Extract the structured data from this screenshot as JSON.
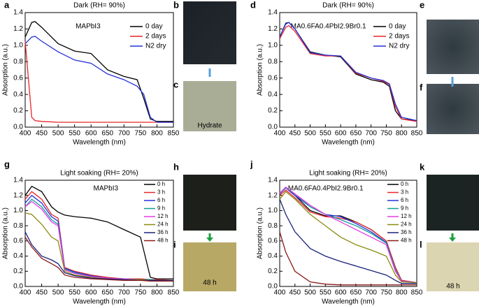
{
  "chart_data": [
    {
      "type": "line",
      "panel": "a",
      "title": "Dark (RH= 90%)",
      "annotation": "MAPbI3",
      "xlabel": "Wavelength (nm)",
      "ylabel": "Absorption (a.u.)",
      "x": [
        400,
        420,
        430,
        450,
        500,
        550,
        600,
        650,
        700,
        740,
        760,
        780,
        800,
        850
      ],
      "series": [
        {
          "name": "0 day",
          "color": "#000000",
          "values": [
            1.1,
            1.28,
            1.29,
            1.22,
            1.02,
            0.93,
            0.9,
            0.7,
            0.62,
            0.58,
            0.35,
            0.1,
            0.07,
            0.07
          ]
        },
        {
          "name": "2 days",
          "color": "#e8262a",
          "values": [
            1.05,
            0.12,
            0.08,
            0.07,
            0.06,
            0.06,
            0.06,
            0.06,
            0.06,
            0.06,
            0.06,
            0.06,
            0.06,
            0.06
          ]
        },
        {
          "name": "N2 dry",
          "color": "#2532d8",
          "values": [
            1.02,
            1.1,
            1.11,
            1.05,
            0.92,
            0.82,
            0.78,
            0.65,
            0.58,
            0.5,
            0.4,
            0.12,
            0.06,
            0.06
          ]
        }
      ],
      "xlim": [
        400,
        850
      ],
      "xticks": [
        400,
        450,
        500,
        550,
        600,
        650,
        700,
        750,
        800,
        850
      ],
      "ylim": [
        0,
        1.4
      ],
      "yticks": [
        {
          "value": 0,
          "label": "0.0"
        },
        0.2,
        0.4,
        0.6,
        0.8,
        {
          "value": 1,
          "label": "1.0"
        },
        1.2,
        1.4
      ],
      "legend_loc": "upper right",
      "grid": false
    },
    {
      "type": "line",
      "panel": "d",
      "title": "Dark (RH= 90%)",
      "annotation": "MA0.6FA0.4PbI2.9Br0.1",
      "xlabel": "Wavelength (nm)",
      "ylabel": "Absorption (a.u.)",
      "x": [
        400,
        420,
        430,
        450,
        500,
        550,
        600,
        650,
        700,
        740,
        760,
        780,
        800,
        850
      ],
      "series": [
        {
          "name": "0 day",
          "color": "#000000",
          "values": [
            1.1,
            1.27,
            1.28,
            1.2,
            0.92,
            0.88,
            0.86,
            0.65,
            0.58,
            0.55,
            0.5,
            0.2,
            0.1,
            0.08
          ]
        },
        {
          "name": "2 days",
          "color": "#e8262a",
          "values": [
            1.08,
            1.22,
            1.24,
            1.17,
            0.9,
            0.87,
            0.87,
            0.66,
            0.6,
            0.56,
            0.52,
            0.25,
            0.1,
            0.07
          ]
        },
        {
          "name": "N2 dry",
          "color": "#2532d8",
          "values": [
            1.1,
            1.26,
            1.28,
            1.2,
            0.91,
            0.88,
            0.87,
            0.67,
            0.6,
            0.57,
            0.53,
            0.28,
            0.12,
            0.08
          ]
        }
      ],
      "xlim": [
        400,
        850
      ],
      "xticks": [
        400,
        450,
        500,
        550,
        600,
        650,
        700,
        750,
        800,
        850
      ],
      "ylim": [
        0,
        1.4
      ],
      "yticks": [
        {
          "value": 0,
          "label": "0.0"
        },
        0.2,
        0.4,
        0.6,
        0.8,
        {
          "value": 1,
          "label": "1.0"
        },
        1.2,
        1.4
      ],
      "legend_loc": "upper right",
      "grid": false
    },
    {
      "type": "line",
      "panel": "g",
      "title": "Light soaking (RH= 20%)",
      "annotation": "MAPbI3",
      "xlabel": "Wavelength (nm)",
      "ylabel": "Absorption (a.u.)",
      "x": [
        400,
        420,
        450,
        480,
        500,
        520,
        550,
        600,
        650,
        700,
        750,
        780,
        800,
        850
      ],
      "series": [
        {
          "name": "0 h",
          "color": "#000000",
          "values": [
            1.2,
            1.32,
            1.25,
            1.05,
            0.98,
            0.94,
            0.92,
            0.9,
            0.85,
            0.75,
            0.65,
            0.12,
            0.1,
            0.1
          ]
        },
        {
          "name": "3 h",
          "color": "#e8262a",
          "values": [
            1.15,
            1.25,
            1.15,
            0.95,
            0.9,
            0.25,
            0.2,
            0.15,
            0.12,
            0.1,
            0.1,
            0.09,
            0.09,
            0.08
          ]
        },
        {
          "name": "6 h",
          "color": "#2532d8",
          "values": [
            1.1,
            1.2,
            1.1,
            0.92,
            0.86,
            0.24,
            0.19,
            0.14,
            0.11,
            0.1,
            0.09,
            0.09,
            0.08,
            0.08
          ]
        },
        {
          "name": "9 h",
          "color": "#149a9a",
          "values": [
            1.05,
            1.15,
            1.05,
            0.88,
            0.82,
            0.23,
            0.18,
            0.13,
            0.11,
            0.1,
            0.09,
            0.09,
            0.08,
            0.08
          ]
        },
        {
          "name": "12 h",
          "color": "#e63ae6",
          "values": [
            1.05,
            1.12,
            1.02,
            0.85,
            0.8,
            0.22,
            0.17,
            0.13,
            0.11,
            0.1,
            0.09,
            0.08,
            0.08,
            0.08
          ]
        },
        {
          "name": "24 h",
          "color": "#8a8a10",
          "values": [
            0.97,
            0.95,
            0.82,
            0.65,
            0.6,
            0.2,
            0.15,
            0.12,
            0.1,
            0.09,
            0.09,
            0.08,
            0.08,
            0.08
          ]
        },
        {
          "name": "36 h",
          "color": "#1a237a",
          "values": [
            0.72,
            0.55,
            0.4,
            0.35,
            0.3,
            0.18,
            0.14,
            0.11,
            0.1,
            0.09,
            0.08,
            0.08,
            0.08,
            0.08
          ]
        },
        {
          "name": "48 h",
          "color": "#8b1a1a",
          "values": [
            0.65,
            0.52,
            0.37,
            0.3,
            0.25,
            0.15,
            0.12,
            0.1,
            0.09,
            0.08,
            0.08,
            0.07,
            0.07,
            0.07
          ]
        }
      ],
      "xlim": [
        400,
        850
      ],
      "xticks": [
        400,
        450,
        500,
        550,
        600,
        650,
        700,
        750,
        800,
        850
      ],
      "ylim": [
        0,
        1.4
      ],
      "yticks": [
        {
          "value": 0,
          "label": "0.0"
        },
        0.2,
        0.4,
        0.6,
        0.8,
        {
          "value": 1,
          "label": "1.0"
        },
        1.2,
        1.4
      ],
      "legend_loc": "upper right",
      "grid": false
    },
    {
      "type": "line",
      "panel": "j",
      "title": "Light soaking (RH= 20%)",
      "annotation": "MA0.6FA0.4PbI2.9Br0.1",
      "xlabel": "Wavelength (nm)",
      "ylabel": "Absorption (a.u.)",
      "x": [
        400,
        420,
        450,
        500,
        550,
        600,
        650,
        700,
        750,
        780,
        800,
        850
      ],
      "series": [
        {
          "name": "0 h",
          "color": "#000000",
          "values": [
            1.22,
            1.3,
            1.2,
            1.0,
            0.93,
            0.93,
            0.85,
            0.75,
            0.6,
            0.25,
            0.08,
            0.05
          ]
        },
        {
          "name": "3 h",
          "color": "#e8262a",
          "values": [
            1.2,
            1.27,
            1.17,
            0.98,
            0.92,
            0.9,
            0.85,
            0.75,
            0.6,
            0.25,
            0.08,
            0.05
          ]
        },
        {
          "name": "6 h",
          "color": "#2532d8",
          "values": [
            1.22,
            1.3,
            1.2,
            1.05,
            0.95,
            0.92,
            0.83,
            0.72,
            0.58,
            0.22,
            0.07,
            0.05
          ]
        },
        {
          "name": "9 h",
          "color": "#149a9a",
          "values": [
            1.23,
            1.3,
            1.22,
            1.05,
            0.95,
            0.88,
            0.8,
            0.7,
            0.57,
            0.22,
            0.07,
            0.05
          ]
        },
        {
          "name": "12 h",
          "color": "#e63ae6",
          "values": [
            1.23,
            1.31,
            1.22,
            1.07,
            0.95,
            0.85,
            0.75,
            0.65,
            0.55,
            0.2,
            0.07,
            0.05
          ]
        },
        {
          "name": "24 h",
          "color": "#8a8a10",
          "values": [
            1.15,
            1.25,
            1.15,
            0.95,
            0.8,
            0.65,
            0.55,
            0.48,
            0.4,
            0.15,
            0.06,
            0.05
          ]
        },
        {
          "name": "36 h",
          "color": "#1a237a",
          "values": [
            1.15,
            0.95,
            0.72,
            0.5,
            0.4,
            0.33,
            0.27,
            0.21,
            0.15,
            0.08,
            0.04,
            0.04
          ]
        },
        {
          "name": "48 h",
          "color": "#8b1a1a",
          "values": [
            0.72,
            0.45,
            0.2,
            0.06,
            0.03,
            0.02,
            0.02,
            0.02,
            0.02,
            0.02,
            0.02,
            0.02
          ]
        }
      ],
      "xlim": [
        400,
        850
      ],
      "xticks": [
        400,
        450,
        500,
        550,
        600,
        650,
        700,
        750,
        800,
        850
      ],
      "ylim": [
        0,
        1.4
      ],
      "yticks": [
        {
          "value": 0,
          "label": "0.0"
        },
        0.2,
        0.4,
        0.6,
        0.8,
        {
          "value": 1,
          "label": "1.0"
        },
        1.2,
        1.4
      ],
      "legend_loc": "upper right",
      "grid": false
    }
  ],
  "photos": [
    {
      "panel": "b"
    },
    {
      "panel": "c",
      "caption": "Hydrate"
    },
    {
      "panel": "e"
    },
    {
      "panel": "f"
    },
    {
      "panel": "h"
    },
    {
      "panel": "i",
      "caption": "48 h"
    },
    {
      "panel": "k"
    },
    {
      "panel": "l",
      "caption": "48 h"
    }
  ]
}
